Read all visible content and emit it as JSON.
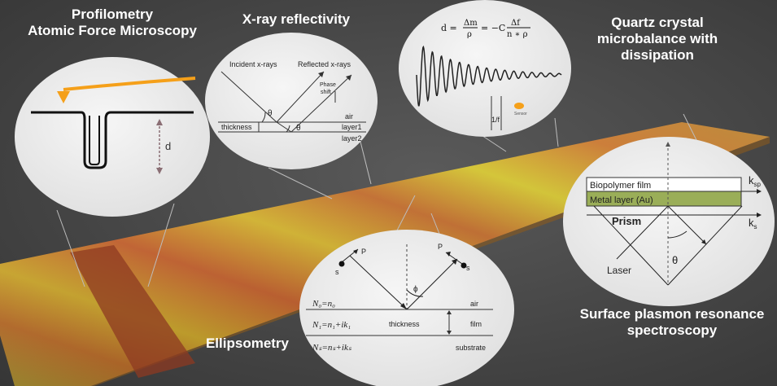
{
  "titles": {
    "profilometry_line1": "Profilometry",
    "profilometry_line2": "Atomic Force Microscopy",
    "xray": "X-ray reflectivity",
    "qcm_line1": "Quartz crystal",
    "qcm_line2": "microbalance with",
    "qcm_line3": "dissipation",
    "ellipsometry": "Ellipsometry",
    "spr_line1": "Surface plasmon resonance",
    "spr_line2": "spectroscopy"
  },
  "afm": {
    "thickness": "d"
  },
  "xray": {
    "incident": "Incident x-rays",
    "reflected": "Reflected x-rays",
    "phase_shift_1": "Phase",
    "phase_shift_2": "shift",
    "theta": "θ",
    "air": "air",
    "layer1": "layer1",
    "layer2": "layer2",
    "thickness": "thickness"
  },
  "qcm": {
    "equation_d": "d =",
    "dm": "Δm",
    "rho": "ρ",
    "eq2": "= −C",
    "df": "Δf",
    "nrho": "n ∗ ρ",
    "period": "1/f",
    "sensor": "Sensor"
  },
  "ellipsometry": {
    "p1": "P",
    "s1": "s",
    "p2": "P",
    "s2": "s",
    "phi": "ϕ",
    "n0": "N₀=n₀",
    "n1": "N₁=n₁+ik₁",
    "ns": "Nₛ=nₛ+ikₛ",
    "air": "air",
    "film": "film",
    "substrate": "substrate",
    "thickness": "thickness"
  },
  "spr": {
    "biopolymer": "Biopolymer film",
    "metal": "Metal layer (Au)",
    "ksp": "k",
    "ksp_sub": "sp",
    "ks": "k",
    "ks_sub": "s",
    "prism": "Prism",
    "laser": "Laser",
    "theta": "θ"
  },
  "colors": {
    "background": "#464646",
    "orange_tip": "#f5a01a",
    "metal_layer": "#9aae58",
    "bubble": "#ececec"
  }
}
